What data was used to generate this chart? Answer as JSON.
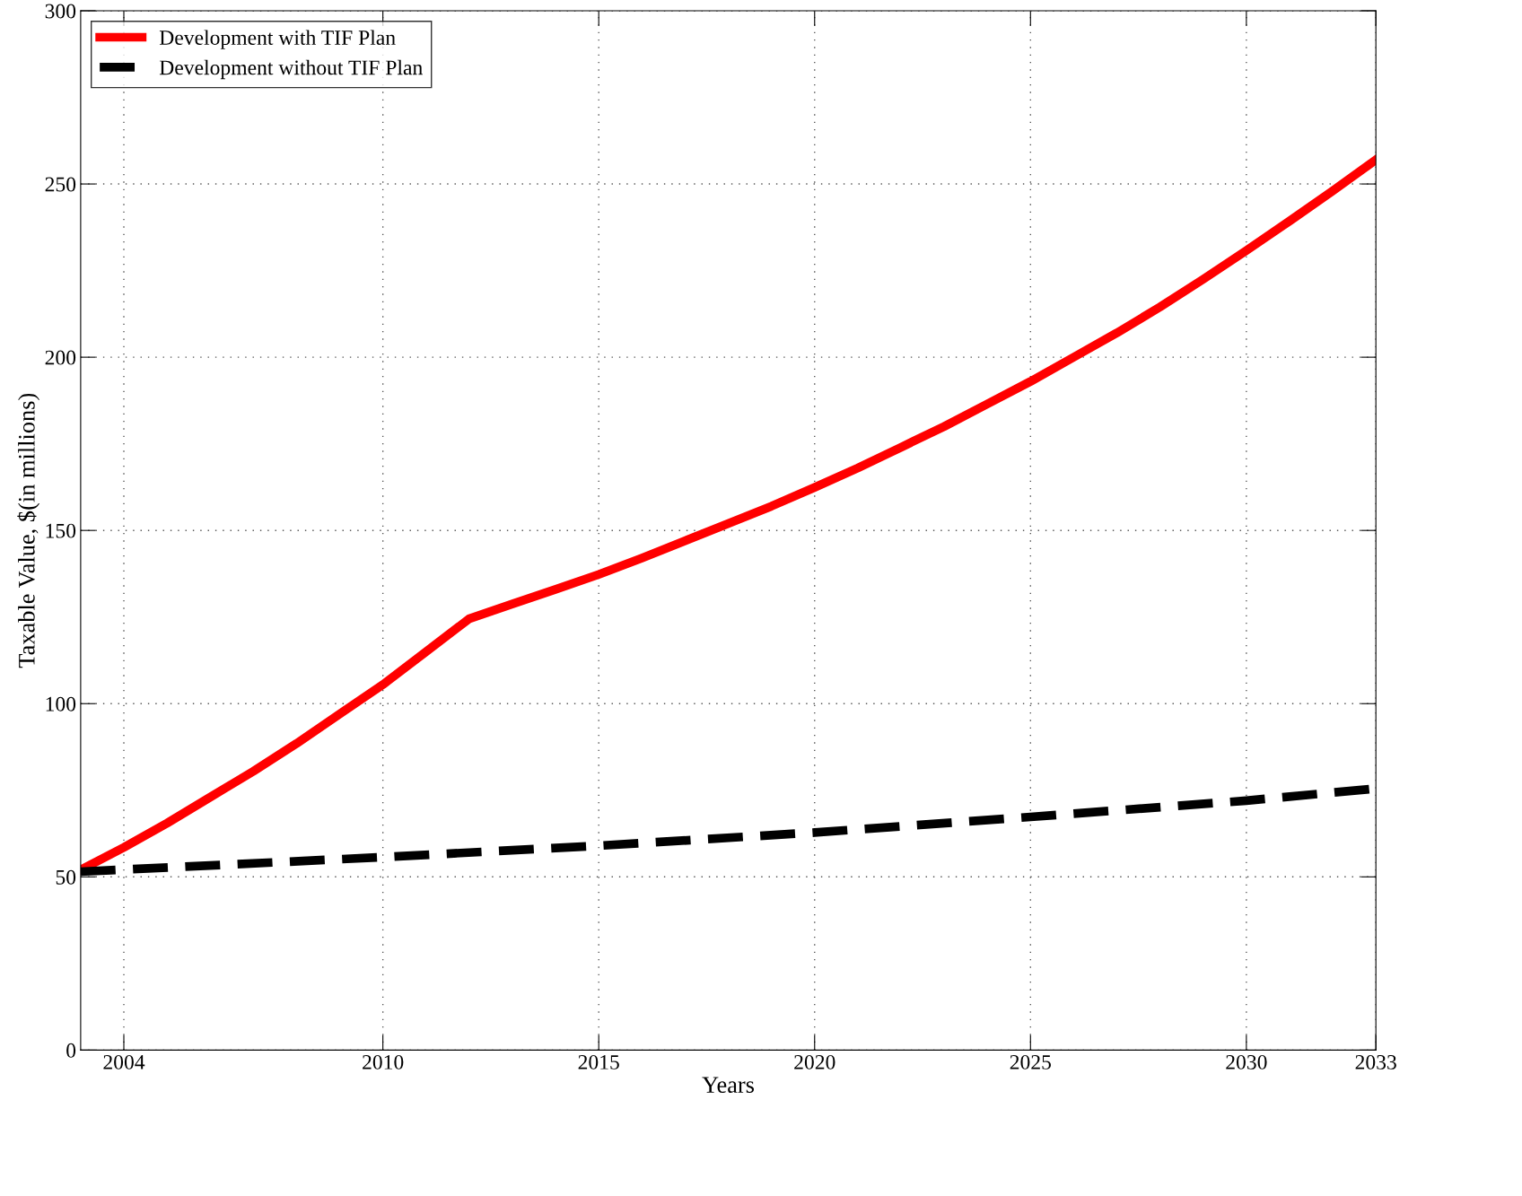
{
  "chart_data": {
    "type": "line",
    "xlabel": "Years",
    "ylabel": "Taxable Value, $(in millions)",
    "xlim": [
      2003,
      2033
    ],
    "xticks": [
      2004,
      2010,
      2015,
      2020,
      2025,
      2030,
      2033
    ],
    "ylim": [
      0,
      300
    ],
    "yticks": [
      0,
      50,
      100,
      150,
      200,
      250,
      300
    ],
    "grid": true,
    "legend": "top left",
    "series": [
      {
        "name": "Development with TIF Plan",
        "color": "#ff0000",
        "line_style": "solid",
        "x": [
          2003,
          2004,
          2005,
          2006,
          2007,
          2008,
          2009,
          2010,
          2011,
          2012,
          2013,
          2014,
          2015,
          2016,
          2017,
          2018,
          2019,
          2020,
          2021,
          2022,
          2023,
          2024,
          2025,
          2026,
          2027,
          2028,
          2029,
          2030,
          2031,
          2032,
          2033
        ],
        "values": [
          52,
          58.5,
          65.5,
          73,
          80.5,
          88.5,
          97,
          105.5,
          115,
          124.5,
          128.8,
          133,
          137.3,
          142,
          147,
          152,
          157,
          162.4,
          168,
          174,
          180,
          186.5,
          193,
          200,
          207,
          214.5,
          222.5,
          230.8,
          239.3,
          248,
          257
        ]
      },
      {
        "name": "Development without TIF Plan",
        "color": "#000000",
        "line_style": "dashed",
        "x": [
          2003,
          2010,
          2015,
          2020,
          2025,
          2030,
          2033
        ],
        "values": [
          51.5,
          55.7,
          59,
          62.8,
          67.3,
          72,
          75.5
        ]
      }
    ]
  }
}
